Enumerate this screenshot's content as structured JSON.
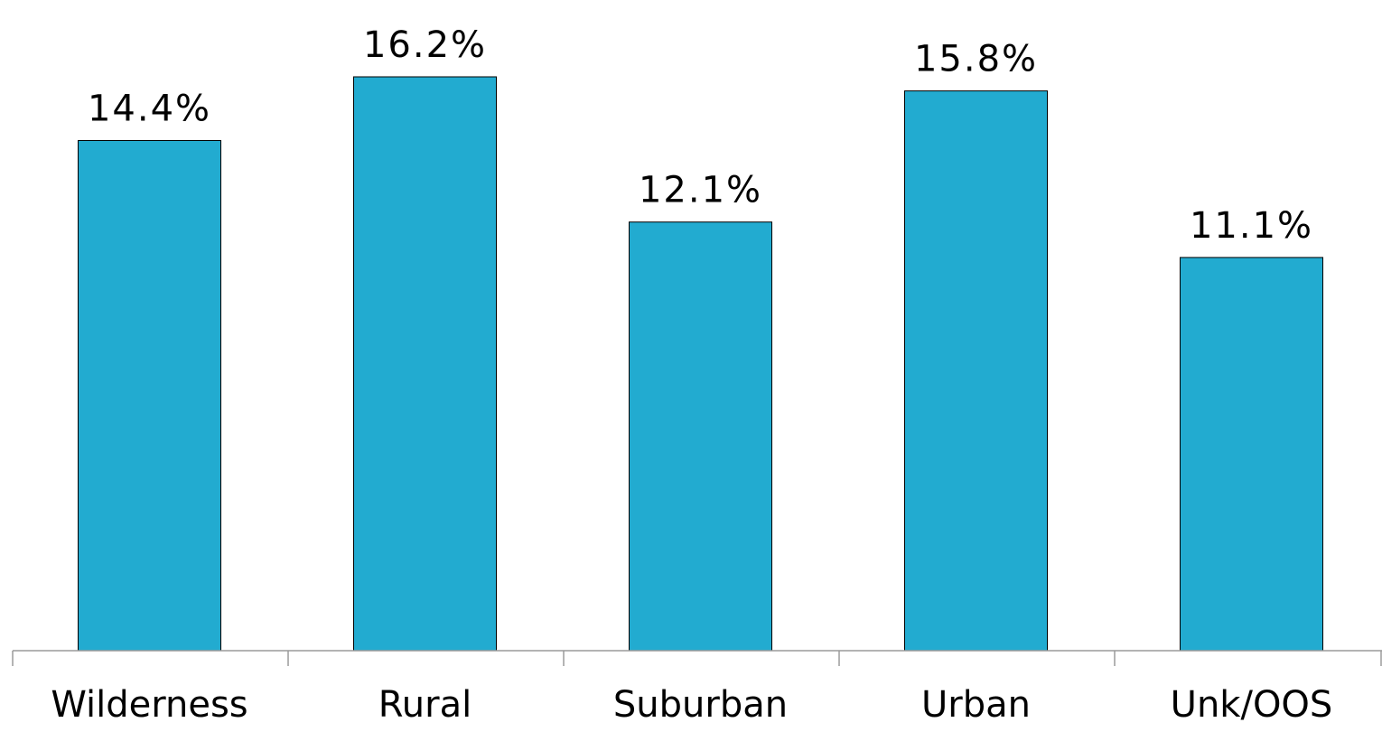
{
  "colors": {
    "bar": "#22ABD0",
    "axis": "#9a9a9a",
    "text": "#000000"
  },
  "chart_data": {
    "type": "bar",
    "categories": [
      "Wilderness",
      "Rural",
      "Suburban",
      "Urban",
      "Unk/OOS"
    ],
    "values": [
      14.4,
      16.2,
      12.1,
      15.8,
      11.1
    ],
    "value_labels": [
      "14.4%",
      "16.2%",
      "12.1%",
      "15.8%",
      "11.1%"
    ],
    "title": "",
    "xlabel": "",
    "ylabel": "",
    "ylim": [
      0,
      18
    ],
    "grid": false,
    "legend": "none"
  }
}
